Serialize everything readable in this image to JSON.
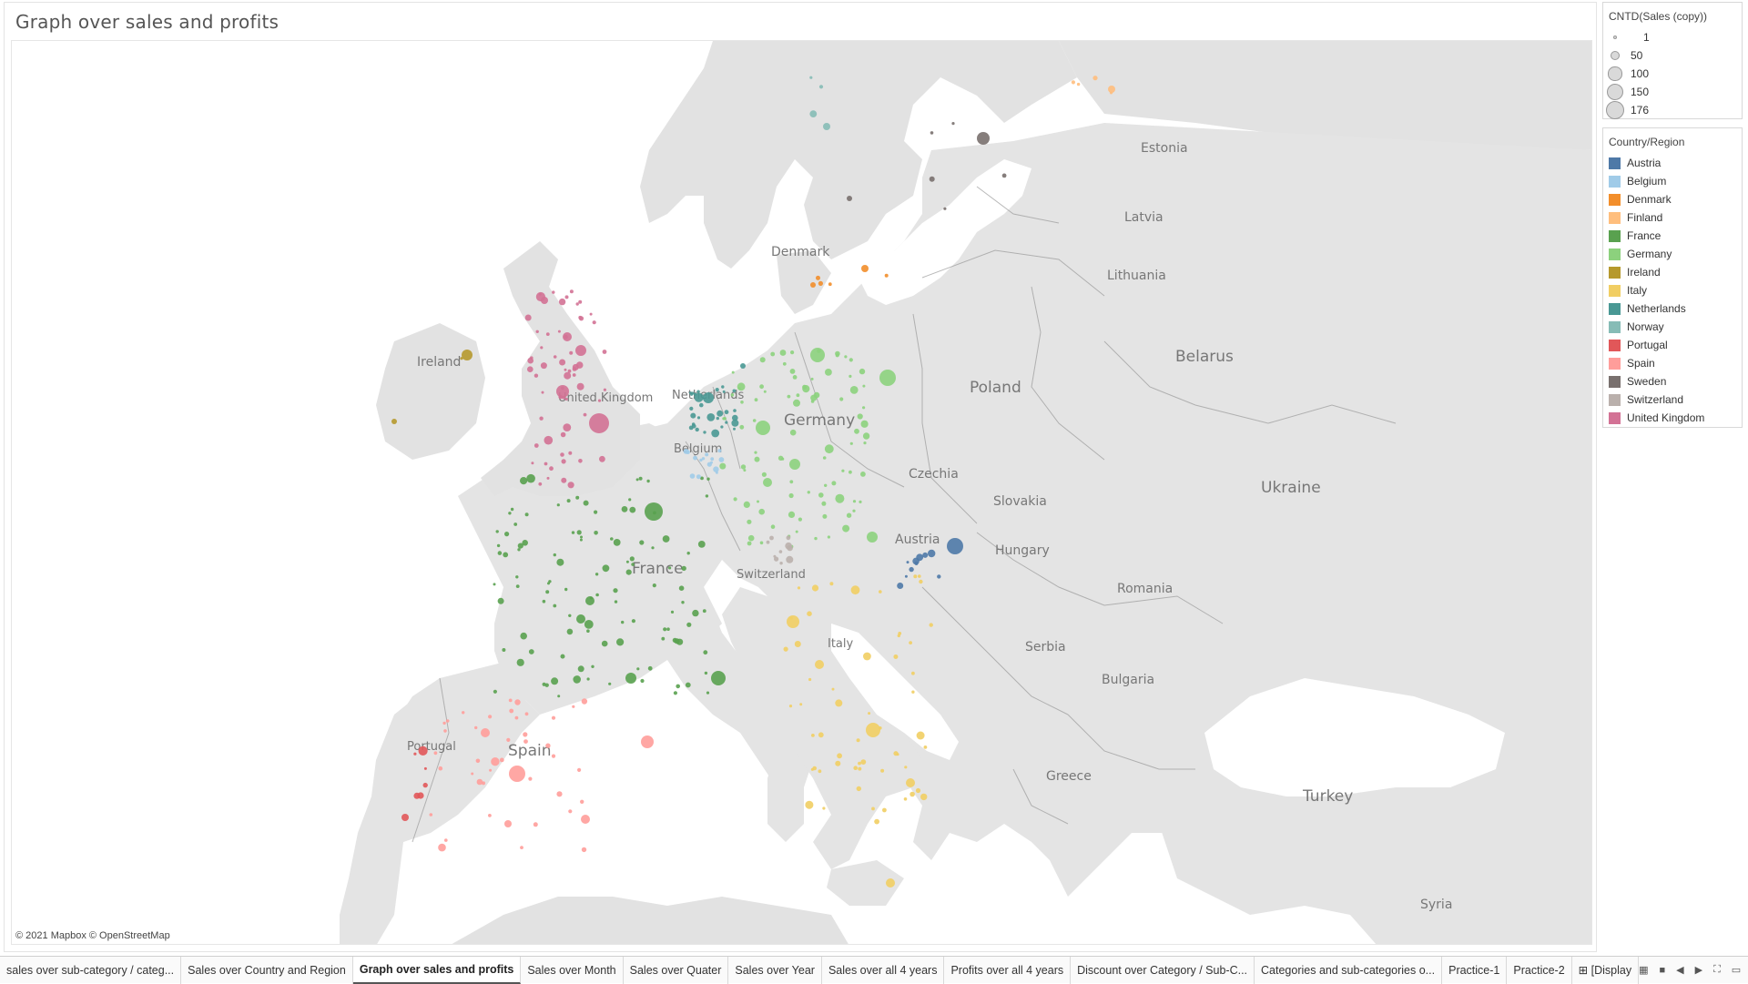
{
  "title": "Graph over sales and profits",
  "attribution": "© 2021 Mapbox © OpenStreetMap",
  "size_legend": {
    "title": "CNTD(Sales (copy))",
    "items": [
      {
        "label": "1",
        "value": 1
      },
      {
        "label": "50",
        "value": 50
      },
      {
        "label": "100",
        "value": 100
      },
      {
        "label": "150",
        "value": 150
      },
      {
        "label": "176",
        "value": 176
      }
    ]
  },
  "color_legend": {
    "title": "Country/Region",
    "items": [
      {
        "label": "Austria",
        "color": "#4e79a7"
      },
      {
        "label": "Belgium",
        "color": "#a0cbe8"
      },
      {
        "label": "Denmark",
        "color": "#f28e2b"
      },
      {
        "label": "Finland",
        "color": "#ffbe7d"
      },
      {
        "label": "France",
        "color": "#59a14f"
      },
      {
        "label": "Germany",
        "color": "#8cd17d"
      },
      {
        "label": "Ireland",
        "color": "#b6992d"
      },
      {
        "label": "Italy",
        "color": "#f1ce63"
      },
      {
        "label": "Netherlands",
        "color": "#499894"
      },
      {
        "label": "Norway",
        "color": "#86bcb6"
      },
      {
        "label": "Portugal",
        "color": "#e15759"
      },
      {
        "label": "Spain",
        "color": "#ff9d9a"
      },
      {
        "label": "Sweden",
        "color": "#79706e"
      },
      {
        "label": "Switzerland",
        "color": "#bab0ac"
      },
      {
        "label": "United Kingdom",
        "color": "#d37295"
      }
    ]
  },
  "map_labels": [
    "Estonia",
    "Latvia",
    "Lithuania",
    "Denmark",
    "Belarus",
    "Poland",
    "Ireland",
    "United Kingdom",
    "Netherlands",
    "Germany",
    "Belgium",
    "Czechia",
    "Slovakia",
    "Ukraine",
    "Austria",
    "Hungary",
    "France",
    "Switzerland",
    "Romania",
    "Italy",
    "Serbia",
    "Bulgaria",
    "Portugal",
    "Spain",
    "Greece",
    "Turkey",
    "Syria"
  ],
  "tabs": [
    {
      "label": "sales over sub-category / categ...",
      "active": false
    },
    {
      "label": "Sales over Country and Region",
      "active": false
    },
    {
      "label": "Graph over sales and profits",
      "active": true
    },
    {
      "label": "Sales over Month",
      "active": false
    },
    {
      "label": "Sales over Quater",
      "active": false
    },
    {
      "label": "Sales over Year",
      "active": false
    },
    {
      "label": "Sales over all 4 years",
      "active": false
    },
    {
      "label": "Profits over all 4 years",
      "active": false
    },
    {
      "label": "Discount over Category / Sub-C...",
      "active": false
    },
    {
      "label": "Categories and sub-categories o...",
      "active": false
    },
    {
      "label": "Practice-1",
      "active": false
    },
    {
      "label": "Practice-2",
      "active": false
    },
    {
      "label": "⊞ [Display",
      "active": false
    }
  ]
}
